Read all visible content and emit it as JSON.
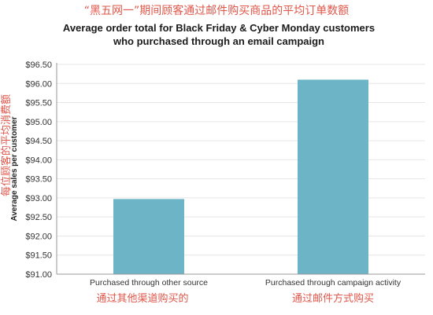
{
  "annotations": {
    "cn_title": "“黑五网一”期间顾客通过邮件购买商品的平均订单数额",
    "cn_ylabel": "每位顾客的平均消费额",
    "cn_categories": [
      "通过其他渠道购买的",
      "通过邮件方式购买"
    ]
  },
  "colors": {
    "bar": "#6cb4c6",
    "annotation": "#e0564a",
    "axis": "#999999",
    "grid": "#e6e6e6"
  },
  "chart_data": {
    "type": "bar",
    "title_line1": "Average order total for Black Friday & Cyber Monday customers",
    "title_line2": "who purchased through an email campaign",
    "ylabel": "Average sales per customer",
    "xlabel": "",
    "categories": [
      "Purchased through other source",
      "Purchased through campaign activity"
    ],
    "values": [
      92.97,
      96.1
    ],
    "ylim": [
      91.0,
      96.5
    ],
    "yticks": [
      "$91.00",
      "$91.50",
      "$92.00",
      "$92.50",
      "$93.00",
      "$93.50",
      "$94.00",
      "$94.50",
      "$95.00",
      "$95.50",
      "$96.00",
      "$96.50"
    ],
    "grid": true,
    "legend": "none"
  }
}
